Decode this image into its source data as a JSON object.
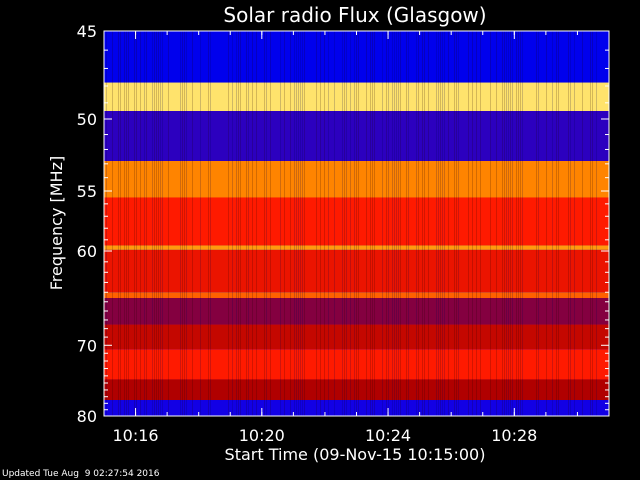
{
  "chart_data": {
    "type": "heatmap",
    "title": "Solar radio Flux (Glasgow)",
    "xlabel": "Start Time (09-Nov-15 10:15:00)",
    "ylabel": "Frequency [MHz]",
    "x_range_minutes": [
      0,
      16
    ],
    "x_ticks": [
      {
        "minute": 1,
        "label": "10:16"
      },
      {
        "minute": 5,
        "label": "10:20"
      },
      {
        "minute": 9,
        "label": "10:24"
      },
      {
        "minute": 13,
        "label": "10:28"
      }
    ],
    "y_range_mhz": [
      45,
      80
    ],
    "y_scale": "reciprocal",
    "y_ticks": [
      45,
      50,
      55,
      60,
      70,
      80
    ],
    "colormap": [
      "#00004a",
      "#0000ff",
      "#b00000",
      "#ff1a00",
      "#ff9000",
      "#ffff90"
    ],
    "frequency_bands": [
      {
        "from_mhz": 45.0,
        "to_mhz": 47.8,
        "intensity": 0.18
      },
      {
        "from_mhz": 47.8,
        "to_mhz": 49.5,
        "intensity": 0.95
      },
      {
        "from_mhz": 49.5,
        "to_mhz": 52.8,
        "intensity": 0.25
      },
      {
        "from_mhz": 52.8,
        "to_mhz": 55.5,
        "intensity": 0.78
      },
      {
        "from_mhz": 55.5,
        "to_mhz": 59.5,
        "intensity": 0.6
      },
      {
        "from_mhz": 59.5,
        "to_mhz": 59.9,
        "intensity": 0.82
      },
      {
        "from_mhz": 59.9,
        "to_mhz": 64.0,
        "intensity": 0.55
      },
      {
        "from_mhz": 64.0,
        "to_mhz": 64.6,
        "intensity": 0.72
      },
      {
        "from_mhz": 64.6,
        "to_mhz": 67.5,
        "intensity": 0.35
      },
      {
        "from_mhz": 67.5,
        "to_mhz": 70.5,
        "intensity": 0.45
      },
      {
        "from_mhz": 70.5,
        "to_mhz": 74.5,
        "intensity": 0.6
      },
      {
        "from_mhz": 74.5,
        "to_mhz": 77.5,
        "intensity": 0.4
      },
      {
        "from_mhz": 77.5,
        "to_mhz": 80.0,
        "intensity": 0.22
      }
    ]
  },
  "footer": "Updated Tue Aug  9 02:27:54 2016"
}
